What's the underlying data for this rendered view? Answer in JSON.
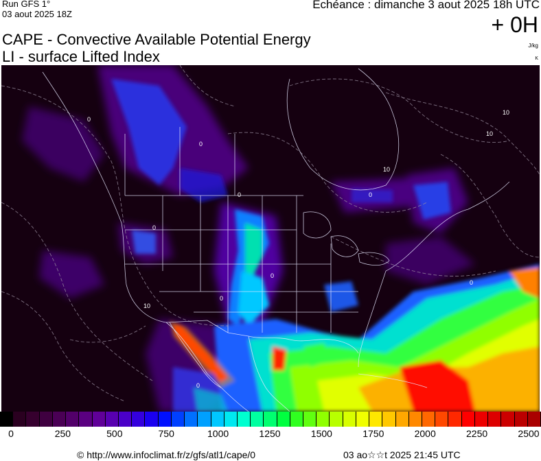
{
  "header": {
    "run_label": "Run GFS 1°",
    "run_date": "03 aout 2025 18Z",
    "echeance": "Echéance : dimanche 3 aout 2025 18h UTC",
    "offset": "+ 0H",
    "title_line1": "CAPE - Convective Available Potential Energy",
    "title_line2": "LI - surface Lifted Index",
    "unit_cape": "J/kg",
    "unit_li": "K"
  },
  "map": {
    "contour_labels": [
      "0",
      "0",
      "0",
      "0",
      "0",
      "0",
      "0",
      "0",
      "0",
      "10",
      "10",
      "10",
      "10"
    ]
  },
  "color_scale": {
    "ticks": [
      "0",
      "250",
      "500",
      "750",
      "1000",
      "1250",
      "1500",
      "1750",
      "2000",
      "2250",
      "2500"
    ],
    "colors": [
      "#000000",
      "#2a0020",
      "#36002e",
      "#3f0040",
      "#4a0055",
      "#52006a",
      "#5a0080",
      "#600098",
      "#5800b0",
      "#4a00c8",
      "#3400dd",
      "#1a00f0",
      "#0010ff",
      "#0040ff",
      "#0070ff",
      "#00a0ff",
      "#00c8ff",
      "#00e8f0",
      "#00ffd0",
      "#00ffa0",
      "#00ff70",
      "#00ff40",
      "#30ff20",
      "#60ff10",
      "#90ff00",
      "#b8ff00",
      "#d8ff00",
      "#f0ff00",
      "#ffe800",
      "#ffc800",
      "#ffa800",
      "#ff8800",
      "#ff6800",
      "#ff4800",
      "#ff2800",
      "#ff0000",
      "#ee0000",
      "#dd0000",
      "#cc0000",
      "#bb0000",
      "#aa0000"
    ]
  },
  "footer": {
    "url": "© http://www.infoclimat.fr/z/gfs/atl1/cape/0",
    "timestamp": "03 ao☆☆t 2025 21:45 UTC"
  }
}
